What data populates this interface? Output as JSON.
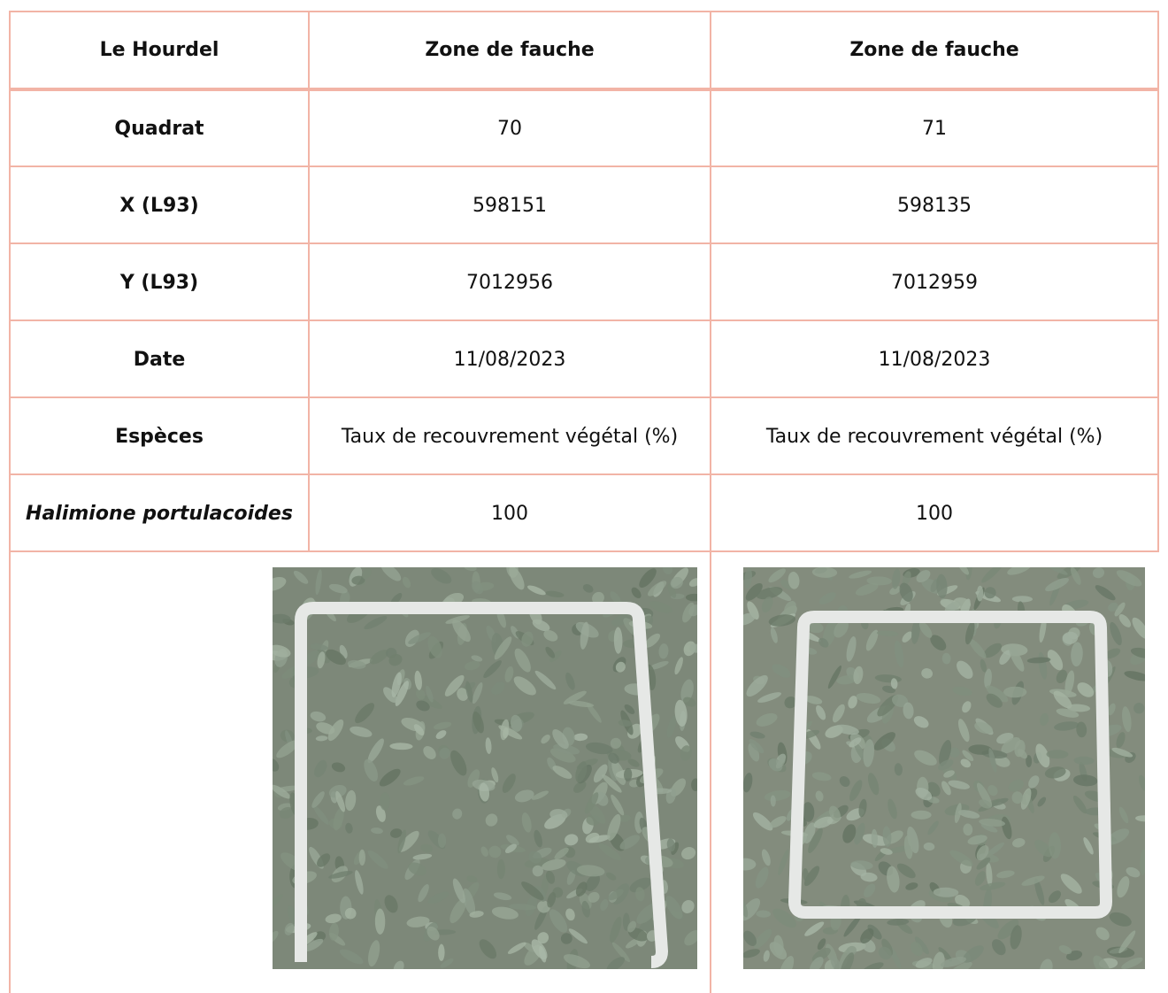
{
  "table": {
    "header": [
      "Le Hourdel",
      "Zone de fauche",
      "Zone de fauche"
    ],
    "rows": [
      [
        "Quadrat",
        "70",
        "71"
      ],
      [
        "X (L93)",
        "598151",
        "598135"
      ],
      [
        "Y (L93)",
        "7012956",
        "7012959"
      ],
      [
        "Date",
        "11/08/2023",
        "11/08/2023"
      ],
      [
        "Espèces",
        "Taux de recouvrement végétal (%)",
        "Taux de recouvrement végétal (%)"
      ],
      [
        "Halimione portulacoides",
        "100",
        "100"
      ]
    ]
  }
}
